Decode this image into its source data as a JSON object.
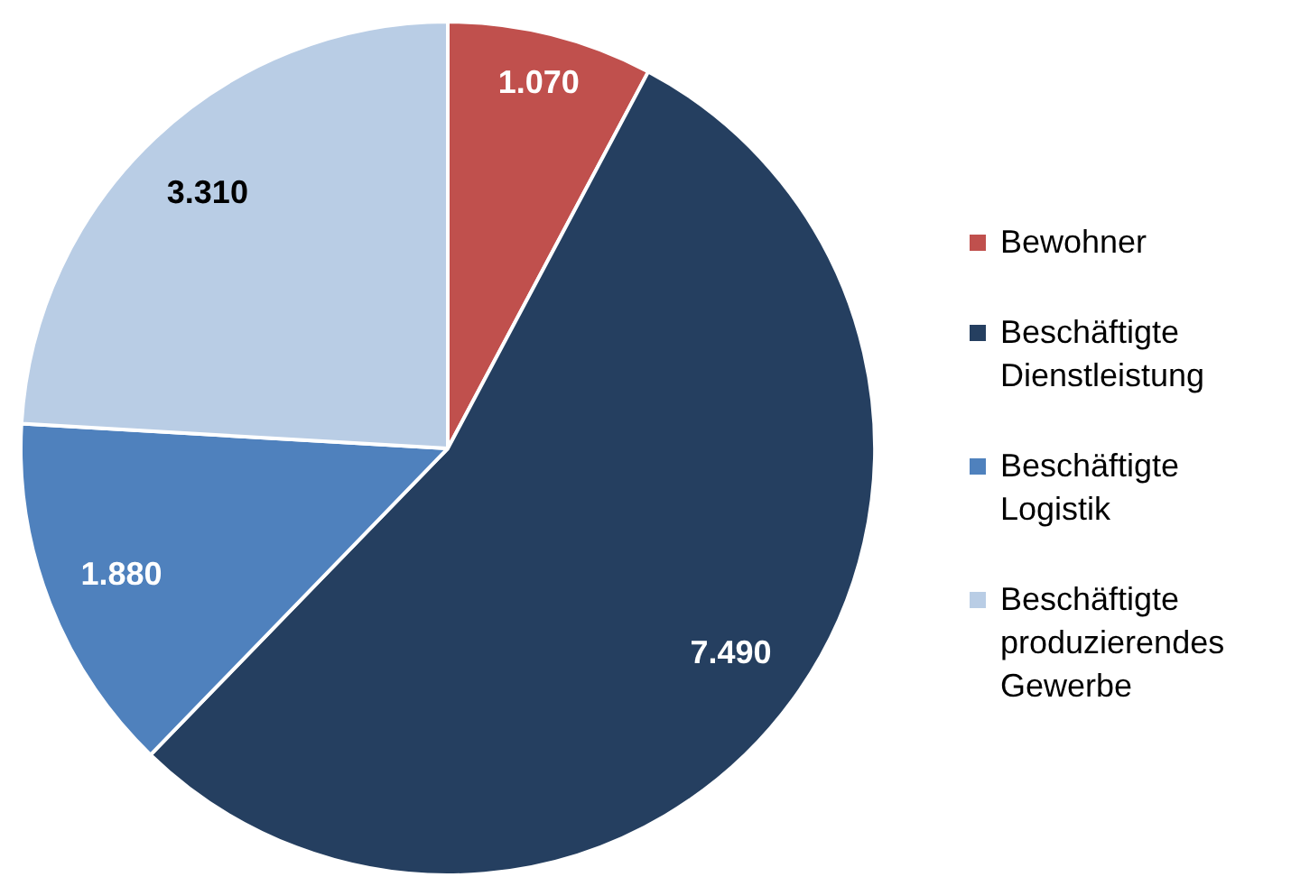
{
  "chart_data": {
    "type": "pie",
    "categories": [
      "Bewohner",
      "Beschäftigte Dienstleistung",
      "Beschäftigte Logistik",
      "Beschäftigte produzierendes Gewerbe"
    ],
    "values": [
      1070,
      7490,
      1880,
      3310
    ],
    "colors": [
      "#c0504d",
      "#253f60",
      "#4f81bd",
      "#b9cde5"
    ],
    "value_labels": [
      "1.070",
      "7.490",
      "1.880",
      "3.310"
    ],
    "legend": "right"
  }
}
